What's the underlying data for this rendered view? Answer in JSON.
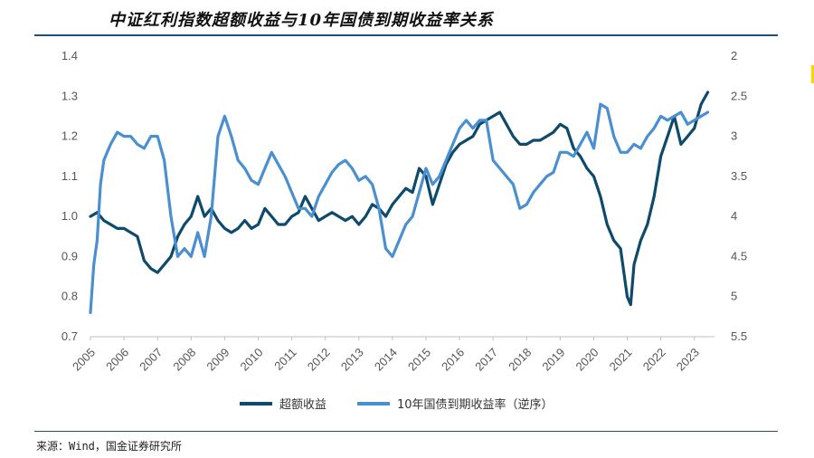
{
  "header": {
    "title": "中证红利指数超额收益与10年国债到期收益率关系"
  },
  "footer": {
    "source": "来源：Wind，国金证券研究所"
  },
  "chart_data": {
    "type": "line",
    "title": "中证红利指数超额收益与10年国债到期收益率关系",
    "x_ticks": [
      "2005",
      "2006",
      "2007",
      "2008",
      "2009",
      "2010",
      "2011",
      "2012",
      "2013",
      "2014",
      "2015",
      "2016",
      "2017",
      "2018",
      "2019",
      "2020",
      "2021",
      "2022",
      "2023"
    ],
    "y_left": {
      "range": [
        0.7,
        1.4
      ],
      "ticks": [
        "0.7",
        "0.8",
        "0.9",
        "1.0",
        "1.1",
        "1.2",
        "1.3",
        "1.4"
      ]
    },
    "y_right": {
      "range": [
        2,
        5.5
      ],
      "inverted": true,
      "ticks": [
        "2",
        "2.5",
        "3",
        "3.5",
        "4",
        "4.5",
        "5",
        "5.5"
      ]
    },
    "legend_position": "bottom",
    "colors": {
      "excess": "#0d4a6b",
      "yield": "#4a8fcf"
    },
    "series": [
      {
        "name": "超额收益",
        "axis": "left",
        "points": [
          [
            2005.0,
            1.0
          ],
          [
            2005.2,
            1.01
          ],
          [
            2005.4,
            0.99
          ],
          [
            2005.6,
            0.98
          ],
          [
            2005.8,
            0.97
          ],
          [
            2006.0,
            0.97
          ],
          [
            2006.2,
            0.96
          ],
          [
            2006.4,
            0.95
          ],
          [
            2006.6,
            0.89
          ],
          [
            2006.8,
            0.87
          ],
          [
            2007.0,
            0.86
          ],
          [
            2007.2,
            0.88
          ],
          [
            2007.4,
            0.9
          ],
          [
            2007.6,
            0.95
          ],
          [
            2007.8,
            0.98
          ],
          [
            2008.0,
            1.0
          ],
          [
            2008.2,
            1.05
          ],
          [
            2008.4,
            1.0
          ],
          [
            2008.6,
            1.02
          ],
          [
            2008.8,
            0.99
          ],
          [
            2009.0,
            0.97
          ],
          [
            2009.2,
            0.96
          ],
          [
            2009.4,
            0.97
          ],
          [
            2009.6,
            0.99
          ],
          [
            2009.8,
            0.97
          ],
          [
            2010.0,
            0.98
          ],
          [
            2010.2,
            1.02
          ],
          [
            2010.4,
            1.0
          ],
          [
            2010.6,
            0.98
          ],
          [
            2010.8,
            0.98
          ],
          [
            2011.0,
            1.0
          ],
          [
            2011.2,
            1.01
          ],
          [
            2011.4,
            1.05
          ],
          [
            2011.6,
            1.02
          ],
          [
            2011.8,
            0.99
          ],
          [
            2012.0,
            1.0
          ],
          [
            2012.2,
            1.01
          ],
          [
            2012.4,
            1.0
          ],
          [
            2012.6,
            0.99
          ],
          [
            2012.8,
            1.0
          ],
          [
            2013.0,
            0.98
          ],
          [
            2013.2,
            1.0
          ],
          [
            2013.4,
            1.03
          ],
          [
            2013.6,
            1.02
          ],
          [
            2013.8,
            1.0
          ],
          [
            2014.0,
            1.03
          ],
          [
            2014.2,
            1.05
          ],
          [
            2014.4,
            1.07
          ],
          [
            2014.6,
            1.06
          ],
          [
            2014.8,
            1.12
          ],
          [
            2015.0,
            1.1
          ],
          [
            2015.2,
            1.03
          ],
          [
            2015.4,
            1.08
          ],
          [
            2015.6,
            1.13
          ],
          [
            2015.8,
            1.16
          ],
          [
            2016.0,
            1.18
          ],
          [
            2016.2,
            1.19
          ],
          [
            2016.4,
            1.2
          ],
          [
            2016.6,
            1.23
          ],
          [
            2016.8,
            1.24
          ],
          [
            2017.0,
            1.25
          ],
          [
            2017.2,
            1.26
          ],
          [
            2017.4,
            1.23
          ],
          [
            2017.6,
            1.2
          ],
          [
            2017.8,
            1.18
          ],
          [
            2018.0,
            1.18
          ],
          [
            2018.2,
            1.19
          ],
          [
            2018.4,
            1.19
          ],
          [
            2018.6,
            1.2
          ],
          [
            2018.8,
            1.21
          ],
          [
            2019.0,
            1.23
          ],
          [
            2019.2,
            1.22
          ],
          [
            2019.4,
            1.17
          ],
          [
            2019.6,
            1.15
          ],
          [
            2019.8,
            1.12
          ],
          [
            2020.0,
            1.1
          ],
          [
            2020.2,
            1.05
          ],
          [
            2020.4,
            0.98
          ],
          [
            2020.6,
            0.94
          ],
          [
            2020.8,
            0.92
          ],
          [
            2021.0,
            0.8
          ],
          [
            2021.1,
            0.78
          ],
          [
            2021.2,
            0.88
          ],
          [
            2021.4,
            0.94
          ],
          [
            2021.6,
            0.98
          ],
          [
            2021.8,
            1.05
          ],
          [
            2022.0,
            1.15
          ],
          [
            2022.2,
            1.2
          ],
          [
            2022.4,
            1.25
          ],
          [
            2022.6,
            1.18
          ],
          [
            2022.8,
            1.2
          ],
          [
            2023.0,
            1.22
          ],
          [
            2023.2,
            1.28
          ],
          [
            2023.4,
            1.31
          ]
        ]
      },
      {
        "name": "10年国债到期收益率（逆序）",
        "axis": "right",
        "points": [
          [
            2005.0,
            5.2
          ],
          [
            2005.1,
            4.6
          ],
          [
            2005.2,
            4.3
          ],
          [
            2005.3,
            3.6
          ],
          [
            2005.4,
            3.3
          ],
          [
            2005.5,
            3.2
          ],
          [
            2005.6,
            3.1
          ],
          [
            2005.8,
            2.95
          ],
          [
            2006.0,
            3.0
          ],
          [
            2006.2,
            3.0
          ],
          [
            2006.4,
            3.1
          ],
          [
            2006.6,
            3.15
          ],
          [
            2006.8,
            3.0
          ],
          [
            2007.0,
            3.0
          ],
          [
            2007.2,
            3.3
          ],
          [
            2007.4,
            4.0
          ],
          [
            2007.6,
            4.5
          ],
          [
            2007.8,
            4.4
          ],
          [
            2008.0,
            4.5
          ],
          [
            2008.2,
            4.2
          ],
          [
            2008.4,
            4.5
          ],
          [
            2008.6,
            4.0
          ],
          [
            2008.8,
            3.0
          ],
          [
            2009.0,
            2.75
          ],
          [
            2009.2,
            3.0
          ],
          [
            2009.4,
            3.3
          ],
          [
            2009.6,
            3.4
          ],
          [
            2009.8,
            3.55
          ],
          [
            2010.0,
            3.6
          ],
          [
            2010.2,
            3.4
          ],
          [
            2010.4,
            3.2
          ],
          [
            2010.6,
            3.35
          ],
          [
            2010.8,
            3.5
          ],
          [
            2011.0,
            3.7
          ],
          [
            2011.2,
            3.9
          ],
          [
            2011.4,
            3.9
          ],
          [
            2011.6,
            4.0
          ],
          [
            2011.8,
            3.75
          ],
          [
            2012.0,
            3.6
          ],
          [
            2012.2,
            3.45
          ],
          [
            2012.4,
            3.35
          ],
          [
            2012.6,
            3.3
          ],
          [
            2012.8,
            3.4
          ],
          [
            2013.0,
            3.55
          ],
          [
            2013.2,
            3.5
          ],
          [
            2013.4,
            3.6
          ],
          [
            2013.6,
            3.9
          ],
          [
            2013.8,
            4.4
          ],
          [
            2014.0,
            4.5
          ],
          [
            2014.2,
            4.3
          ],
          [
            2014.4,
            4.1
          ],
          [
            2014.6,
            4.0
          ],
          [
            2014.8,
            3.7
          ],
          [
            2015.0,
            3.4
          ],
          [
            2015.2,
            3.6
          ],
          [
            2015.4,
            3.5
          ],
          [
            2015.6,
            3.3
          ],
          [
            2015.8,
            3.1
          ],
          [
            2016.0,
            2.9
          ],
          [
            2016.2,
            2.8
          ],
          [
            2016.4,
            2.9
          ],
          [
            2016.6,
            2.8
          ],
          [
            2016.8,
            2.8
          ],
          [
            2017.0,
            3.3
          ],
          [
            2017.2,
            3.4
          ],
          [
            2017.4,
            3.5
          ],
          [
            2017.6,
            3.6
          ],
          [
            2017.8,
            3.9
          ],
          [
            2018.0,
            3.85
          ],
          [
            2018.2,
            3.7
          ],
          [
            2018.4,
            3.6
          ],
          [
            2018.6,
            3.5
          ],
          [
            2018.8,
            3.45
          ],
          [
            2019.0,
            3.2
          ],
          [
            2019.2,
            3.2
          ],
          [
            2019.4,
            3.25
          ],
          [
            2019.6,
            3.1
          ],
          [
            2019.8,
            2.95
          ],
          [
            2020.0,
            3.15
          ],
          [
            2020.2,
            2.6
          ],
          [
            2020.4,
            2.65
          ],
          [
            2020.6,
            3.0
          ],
          [
            2020.8,
            3.2
          ],
          [
            2021.0,
            3.2
          ],
          [
            2021.2,
            3.1
          ],
          [
            2021.4,
            3.15
          ],
          [
            2021.6,
            3.0
          ],
          [
            2021.8,
            2.9
          ],
          [
            2022.0,
            2.75
          ],
          [
            2022.2,
            2.8
          ],
          [
            2022.4,
            2.75
          ],
          [
            2022.6,
            2.7
          ],
          [
            2022.8,
            2.85
          ],
          [
            2023.0,
            2.8
          ],
          [
            2023.2,
            2.75
          ],
          [
            2023.4,
            2.7
          ]
        ]
      }
    ]
  }
}
